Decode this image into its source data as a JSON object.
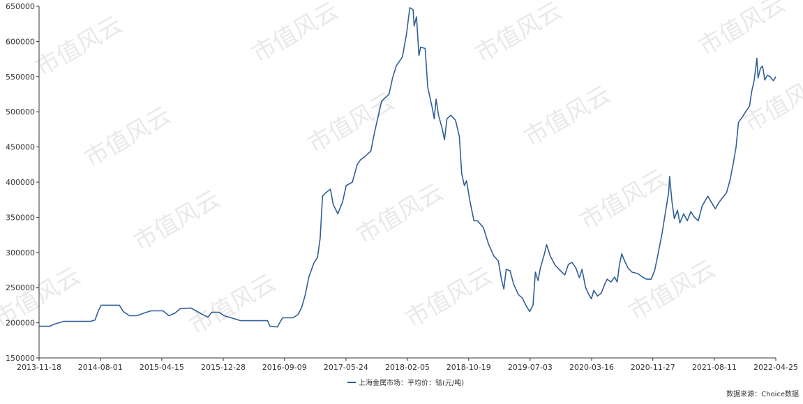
{
  "chart_data": {
    "type": "line",
    "title": "",
    "xlabel": "",
    "ylabel": "",
    "ylim": [
      150000,
      650000
    ],
    "yticks": [
      150000,
      200000,
      250000,
      300000,
      350000,
      400000,
      450000,
      500000,
      550000,
      600000,
      650000
    ],
    "xlim": [
      "2013-11-18",
      "2022-04-25"
    ],
    "xticks": [
      "2013-11-18",
      "2014-08-01",
      "2015-04-15",
      "2015-12-28",
      "2016-09-09",
      "2017-05-24",
      "2018-02-05",
      "2018-10-19",
      "2019-07-03",
      "2020-03-16",
      "2020-11-27",
      "2021-08-11",
      "2022-04-25"
    ],
    "grid": false,
    "legend": "bottom-center",
    "series": [
      {
        "name": "上海金属市场：平均价：钴(元/吨)",
        "color": "#2f5f98",
        "points": [
          [
            "2013-11-18",
            195000
          ],
          [
            "2014-01-01",
            195000
          ],
          [
            "2014-01-20",
            198000
          ],
          [
            "2014-03-01",
            202000
          ],
          [
            "2014-05-01",
            202000
          ],
          [
            "2014-06-20",
            202000
          ],
          [
            "2014-07-10",
            204000
          ],
          [
            "2014-07-25",
            218000
          ],
          [
            "2014-08-05",
            225000
          ],
          [
            "2014-09-15",
            225000
          ],
          [
            "2014-10-20",
            225000
          ],
          [
            "2014-11-05",
            216000
          ],
          [
            "2014-12-01",
            210000
          ],
          [
            "2015-01-01",
            210000
          ],
          [
            "2015-02-01",
            214000
          ],
          [
            "2015-03-01",
            217000
          ],
          [
            "2015-04-20",
            217000
          ],
          [
            "2015-05-15",
            210000
          ],
          [
            "2015-06-10",
            214000
          ],
          [
            "2015-07-01",
            220000
          ],
          [
            "2015-08-15",
            221000
          ],
          [
            "2015-09-10",
            216000
          ],
          [
            "2015-10-01",
            212000
          ],
          [
            "2015-10-25",
            208000
          ],
          [
            "2015-11-10",
            215000
          ],
          [
            "2015-12-10",
            215000
          ],
          [
            "2016-01-01",
            210000
          ],
          [
            "2016-02-10",
            206000
          ],
          [
            "2016-03-10",
            203000
          ],
          [
            "2016-05-01",
            203000
          ],
          [
            "2016-06-30",
            203000
          ],
          [
            "2016-07-10",
            195000
          ],
          [
            "2016-08-10",
            194000
          ],
          [
            "2016-08-20",
            200000
          ],
          [
            "2016-09-01",
            207000
          ],
          [
            "2016-10-15",
            207000
          ],
          [
            "2016-11-05",
            212000
          ],
          [
            "2016-11-20",
            222000
          ],
          [
            "2016-12-05",
            240000
          ],
          [
            "2016-12-20",
            265000
          ],
          [
            "2017-01-10",
            285000
          ],
          [
            "2017-01-25",
            293000
          ],
          [
            "2017-02-05",
            320000
          ],
          [
            "2017-02-15",
            380000
          ],
          [
            "2017-03-01",
            385000
          ],
          [
            "2017-03-20",
            390000
          ],
          [
            "2017-04-01",
            368000
          ],
          [
            "2017-04-20",
            355000
          ],
          [
            "2017-05-10",
            372000
          ],
          [
            "2017-05-25",
            395000
          ],
          [
            "2017-06-20",
            400000
          ],
          [
            "2017-07-10",
            425000
          ],
          [
            "2017-07-25",
            432000
          ],
          [
            "2017-08-10",
            436000
          ],
          [
            "2017-09-05",
            444000
          ],
          [
            "2017-09-20",
            470000
          ],
          [
            "2017-10-10",
            500000
          ],
          [
            "2017-10-20",
            515000
          ],
          [
            "2017-11-20",
            525000
          ],
          [
            "2017-12-05",
            548000
          ],
          [
            "2017-12-20",
            565000
          ],
          [
            "2018-01-15",
            578000
          ],
          [
            "2018-02-01",
            610000
          ],
          [
            "2018-02-15",
            648000
          ],
          [
            "2018-03-01",
            645000
          ],
          [
            "2018-03-05",
            622000
          ],
          [
            "2018-03-15",
            635000
          ],
          [
            "2018-03-25",
            580000
          ],
          [
            "2018-04-01",
            592000
          ],
          [
            "2018-04-20",
            590000
          ],
          [
            "2018-05-01",
            535000
          ],
          [
            "2018-05-20",
            505000
          ],
          [
            "2018-05-28",
            490000
          ],
          [
            "2018-06-05",
            518000
          ],
          [
            "2018-06-15",
            495000
          ],
          [
            "2018-07-01",
            475000
          ],
          [
            "2018-07-10",
            460000
          ],
          [
            "2018-07-20",
            490000
          ],
          [
            "2018-08-05",
            495000
          ],
          [
            "2018-08-25",
            488000
          ],
          [
            "2018-09-10",
            465000
          ],
          [
            "2018-09-20",
            412000
          ],
          [
            "2018-10-01",
            395000
          ],
          [
            "2018-10-10",
            402000
          ],
          [
            "2018-10-25",
            372000
          ],
          [
            "2018-11-10",
            345000
          ],
          [
            "2018-11-25",
            345000
          ],
          [
            "2018-12-20",
            335000
          ],
          [
            "2019-01-10",
            312000
          ],
          [
            "2019-02-01",
            295000
          ],
          [
            "2019-02-20",
            288000
          ],
          [
            "2019-03-05",
            262000
          ],
          [
            "2019-03-15",
            248000
          ],
          [
            "2019-03-25",
            276000
          ],
          [
            "2019-04-10",
            274000
          ],
          [
            "2019-04-25",
            255000
          ],
          [
            "2019-05-15",
            240000
          ],
          [
            "2019-06-01",
            235000
          ],
          [
            "2019-06-15",
            225000
          ],
          [
            "2019-07-01",
            216000
          ],
          [
            "2019-07-15",
            225000
          ],
          [
            "2019-07-25",
            272000
          ],
          [
            "2019-08-05",
            260000
          ],
          [
            "2019-08-15",
            278000
          ],
          [
            "2019-08-30",
            296000
          ],
          [
            "2019-09-10",
            311000
          ],
          [
            "2019-09-25",
            295000
          ],
          [
            "2019-10-15",
            282000
          ],
          [
            "2019-11-01",
            276000
          ],
          [
            "2019-11-25",
            268000
          ],
          [
            "2019-12-10",
            283000
          ],
          [
            "2019-12-25",
            286000
          ],
          [
            "2020-01-10",
            278000
          ],
          [
            "2020-01-25",
            264000
          ],
          [
            "2020-02-05",
            276000
          ],
          [
            "2020-02-20",
            250000
          ],
          [
            "2020-03-05",
            240000
          ],
          [
            "2020-03-15",
            234000
          ],
          [
            "2020-03-25",
            246000
          ],
          [
            "2020-04-10",
            238000
          ],
          [
            "2020-04-25",
            242000
          ],
          [
            "2020-05-10",
            255000
          ],
          [
            "2020-05-20",
            262000
          ],
          [
            "2020-06-05",
            258000
          ],
          [
            "2020-06-20",
            265000
          ],
          [
            "2020-07-01",
            258000
          ],
          [
            "2020-07-10",
            282000
          ],
          [
            "2020-07-20",
            298000
          ],
          [
            "2020-08-01",
            288000
          ],
          [
            "2020-08-15",
            278000
          ],
          [
            "2020-09-01",
            272000
          ],
          [
            "2020-09-25",
            270000
          ],
          [
            "2020-10-15",
            265000
          ],
          [
            "2020-11-01",
            262000
          ],
          [
            "2020-11-20",
            262000
          ],
          [
            "2020-12-05",
            275000
          ],
          [
            "2020-12-20",
            300000
          ],
          [
            "2021-01-05",
            328000
          ],
          [
            "2021-01-20",
            360000
          ],
          [
            "2021-02-01",
            385000
          ],
          [
            "2021-02-05",
            408000
          ],
          [
            "2021-02-15",
            372000
          ],
          [
            "2021-02-25",
            348000
          ],
          [
            "2021-03-10",
            360000
          ],
          [
            "2021-03-20",
            342000
          ],
          [
            "2021-04-05",
            355000
          ],
          [
            "2021-04-20",
            345000
          ],
          [
            "2021-05-05",
            358000
          ],
          [
            "2021-05-20",
            350000
          ],
          [
            "2021-06-05",
            345000
          ],
          [
            "2021-06-20",
            365000
          ],
          [
            "2021-07-01",
            372000
          ],
          [
            "2021-07-15",
            380000
          ],
          [
            "2021-08-01",
            370000
          ],
          [
            "2021-08-15",
            362000
          ],
          [
            "2021-09-01",
            372000
          ],
          [
            "2021-09-15",
            378000
          ],
          [
            "2021-10-01",
            385000
          ],
          [
            "2021-10-15",
            402000
          ],
          [
            "2021-10-30",
            428000
          ],
          [
            "2021-11-10",
            450000
          ],
          [
            "2021-11-20",
            485000
          ],
          [
            "2021-12-05",
            492000
          ],
          [
            "2021-12-20",
            500000
          ],
          [
            "2022-01-05",
            508000
          ],
          [
            "2022-01-15",
            530000
          ],
          [
            "2022-01-25",
            545000
          ],
          [
            "2022-02-05",
            576000
          ],
          [
            "2022-02-10",
            548000
          ],
          [
            "2022-02-20",
            562000
          ],
          [
            "2022-03-01",
            565000
          ],
          [
            "2022-03-10",
            545000
          ],
          [
            "2022-03-20",
            552000
          ],
          [
            "2022-04-01",
            550000
          ],
          [
            "2022-04-15",
            544000
          ],
          [
            "2022-04-25",
            550000
          ]
        ]
      }
    ]
  },
  "source_text": "数据来源：Choice数据",
  "watermark_text": "市值风云"
}
